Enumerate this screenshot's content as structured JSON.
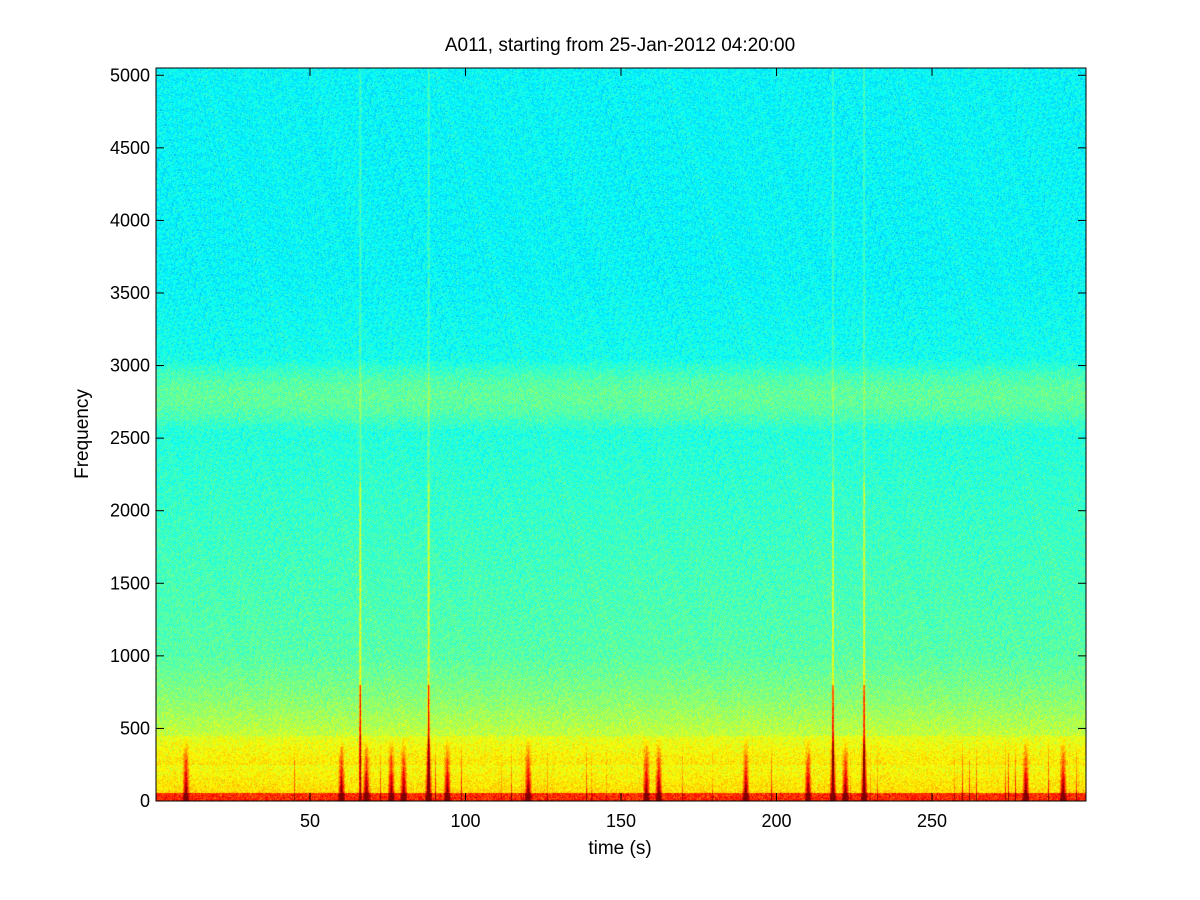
{
  "chart_data": {
    "type": "heatmap",
    "subtype": "spectrogram",
    "title": "A011, starting from 25-Jan-2012 04:20:00",
    "xlabel": "time (s)",
    "ylabel": "Frequency",
    "xlim": [
      0.5,
      299.5
    ],
    "ylim": [
      0,
      5050
    ],
    "xticks": [
      50,
      100,
      150,
      200,
      250
    ],
    "yticks": [
      0,
      500,
      1000,
      1500,
      2000,
      2500,
      3000,
      3500,
      4000,
      4500,
      5000
    ],
    "colormap": "jet",
    "grid": false,
    "legend": "none",
    "colors": {
      "low": "#10e8e0",
      "mid": "#7cff80",
      "high": "#ffff00",
      "peak": "#e00000"
    },
    "features": {
      "background_bands": [
        {
          "freq_range": [
            3500,
            5050
          ],
          "level": "low"
        },
        {
          "freq_range": [
            2600,
            3000
          ],
          "level": "elevated"
        },
        {
          "freq_range": [
            1000,
            2600
          ],
          "level": "medium"
        },
        {
          "freq_range": [
            0,
            700
          ],
          "level": "high"
        }
      ],
      "broadband_transients_s": [
        66,
        88,
        218,
        228
      ],
      "low_frequency_bursts_s": [
        10,
        60,
        68,
        76,
        80,
        88,
        94,
        120,
        158,
        162,
        190,
        210,
        218,
        222,
        228,
        280,
        292
      ]
    }
  }
}
